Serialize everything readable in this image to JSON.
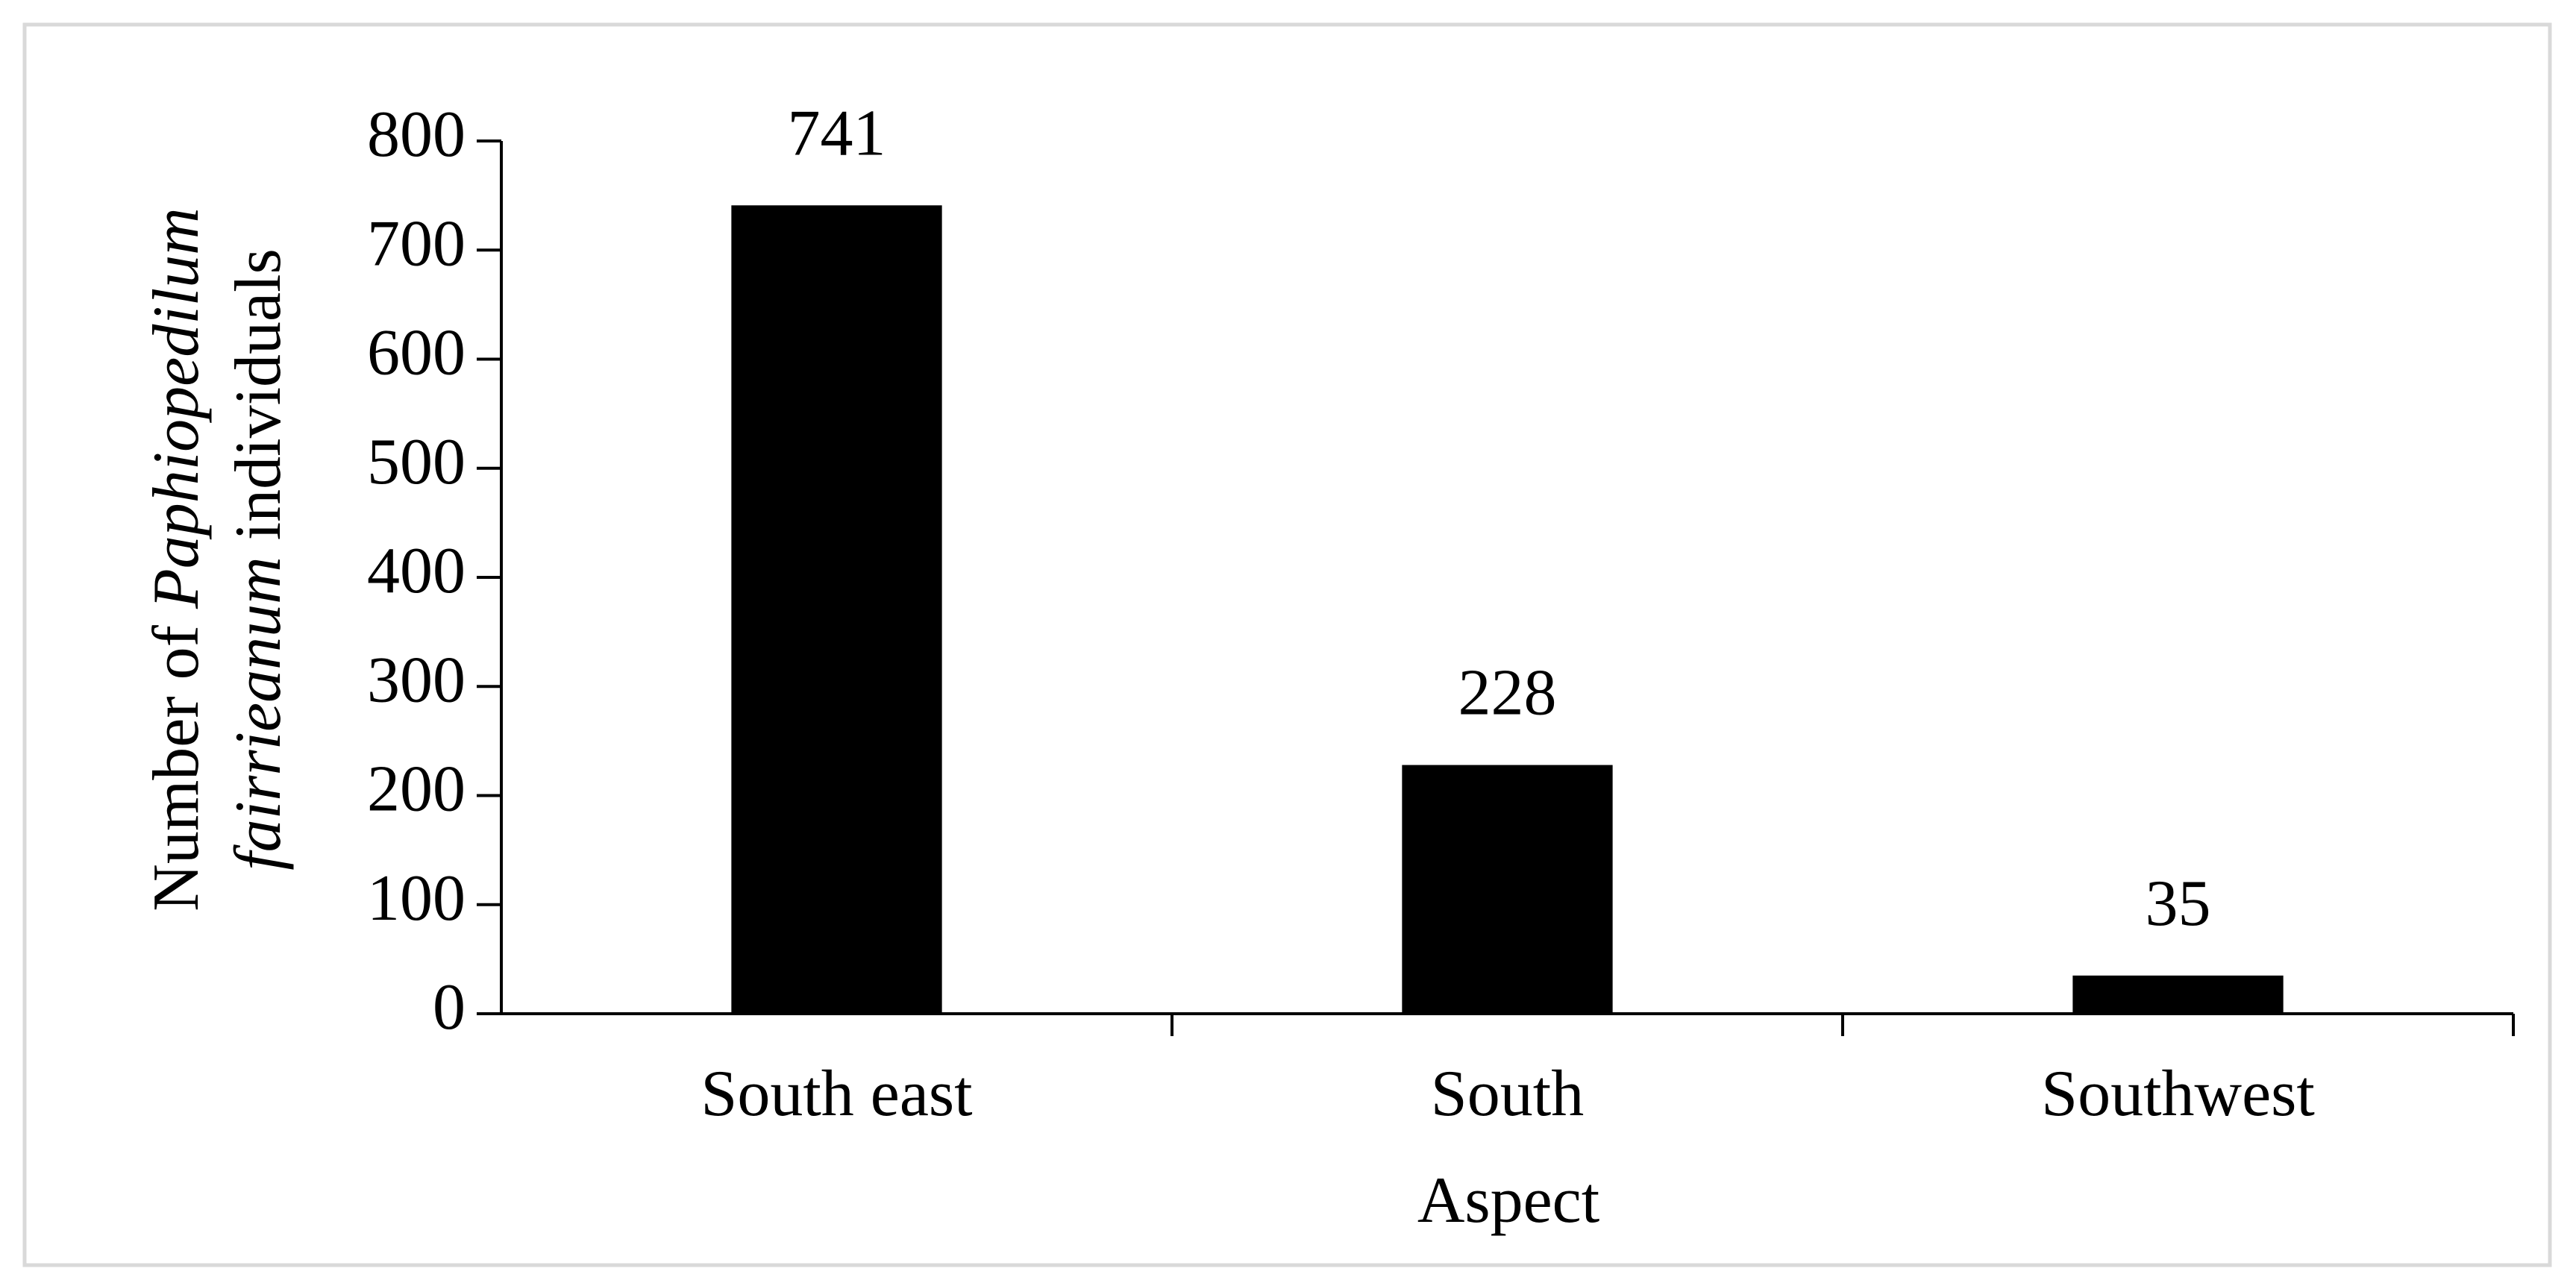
{
  "chart_data": {
    "type": "bar",
    "x_label": "Aspect",
    "y_label": {
      "text": "Number of Paphiopedilum fairrieanum individuals",
      "italic": [
        "Paphiopedilum",
        "fairrieanum"
      ]
    },
    "categories": [
      "South east",
      "South",
      "Southwest"
    ],
    "values": [
      741,
      228,
      35
    ],
    "color": "#000000",
    "ylim": [
      0,
      800
    ],
    "yticks": [
      0,
      100,
      200,
      300,
      400,
      500,
      600,
      700,
      800
    ],
    "grid": false
  }
}
